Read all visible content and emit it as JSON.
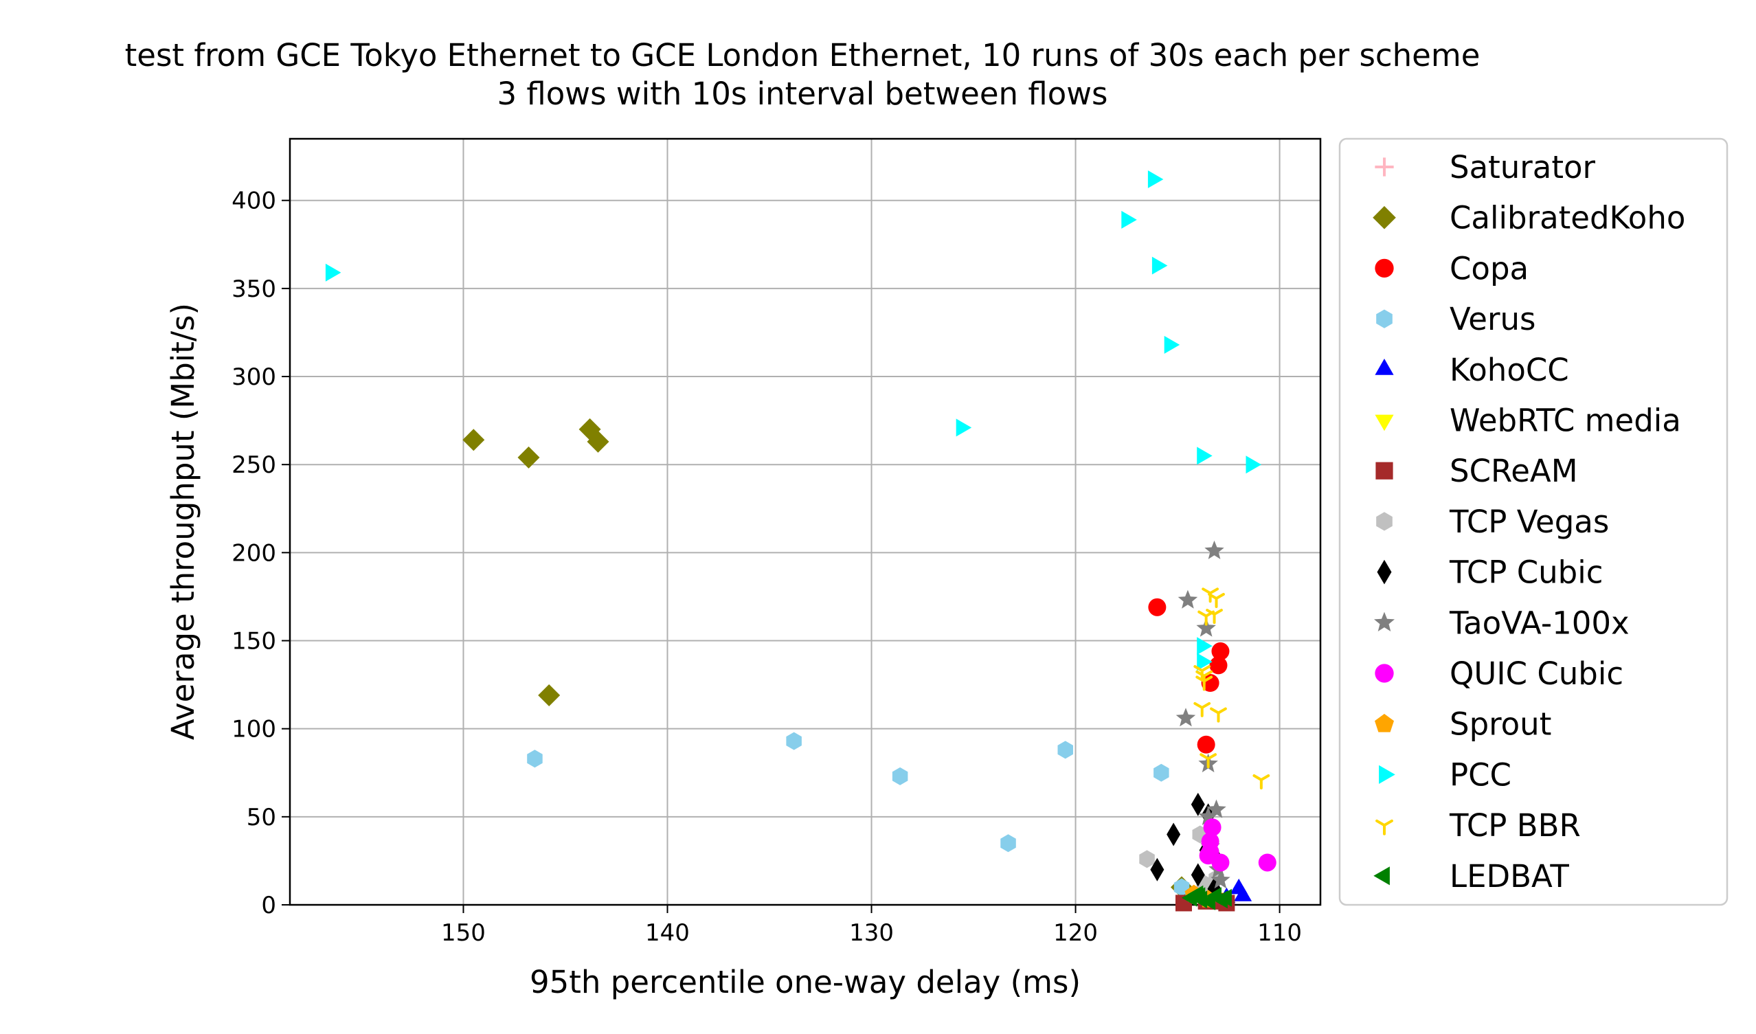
{
  "chart_data": {
    "type": "scatter",
    "title": "test from GCE Tokyo Ethernet to GCE London Ethernet, 10 runs of 30s each per scheme",
    "subtitle": "3 flows with 10s interval between flows",
    "xlabel": "95th percentile one-way delay (ms)",
    "ylabel": "Average throughput (Mbit/s)",
    "xlim": [
      158.5,
      108.0
    ],
    "ylim": [
      0,
      435
    ],
    "x_inverted": true,
    "grid": true,
    "legend_position": "outside-right",
    "xticks": [
      "150",
      "140",
      "130",
      "120",
      "110"
    ],
    "yticks": [
      "0",
      "50",
      "100",
      "150",
      "200",
      "250",
      "300",
      "350",
      "400"
    ],
    "series": [
      {
        "name": "Saturator",
        "color": "#ffb6c1",
        "marker": "plus",
        "points": []
      },
      {
        "name": "CalibratedKoho",
        "color": "#808000",
        "marker": "diamond",
        "points": [
          [
            149.5,
            264
          ],
          [
            146.8,
            254
          ],
          [
            143.8,
            270
          ],
          [
            143.4,
            263
          ],
          [
            145.8,
            119
          ],
          [
            114.8,
            10
          ]
        ]
      },
      {
        "name": "Copa",
        "color": "#ff0000",
        "marker": "circle",
        "points": [
          [
            116.0,
            169
          ],
          [
            112.9,
            144
          ],
          [
            113.0,
            136
          ],
          [
            113.4,
            126
          ],
          [
            113.6,
            91
          ]
        ]
      },
      {
        "name": "Verus",
        "color": "#87ceeb",
        "marker": "hexagon",
        "points": [
          [
            146.5,
            83
          ],
          [
            133.8,
            93
          ],
          [
            128.6,
            73
          ],
          [
            120.5,
            88
          ],
          [
            115.8,
            75
          ],
          [
            123.3,
            35
          ],
          [
            114.8,
            10
          ]
        ]
      },
      {
        "name": "KohoCC",
        "color": "#0000ff",
        "marker": "triangle-up",
        "points": [
          [
            112.0,
            9
          ],
          [
            111.8,
            5
          ],
          [
            113.0,
            3
          ],
          [
            114.0,
            6
          ],
          [
            112.6,
            4
          ]
        ]
      },
      {
        "name": "WebRTC media",
        "color": "#ffff00",
        "marker": "triangle-down",
        "points": [
          [
            113.2,
            4
          ],
          [
            113.6,
            5
          ]
        ]
      },
      {
        "name": "SCReAM",
        "color": "#a52a2a",
        "marker": "square",
        "points": [
          [
            114.7,
            1
          ],
          [
            112.6,
            1
          ],
          [
            113.6,
            2
          ],
          [
            113.0,
            2
          ]
        ]
      },
      {
        "name": "TCP Vegas",
        "color": "#c0c0c0",
        "marker": "hexagon",
        "points": [
          [
            116.5,
            26
          ],
          [
            113.9,
            40
          ],
          [
            113.7,
            12
          ],
          [
            113.1,
            15
          ]
        ]
      },
      {
        "name": "TCP Cubic",
        "color": "#000000",
        "marker": "thin-diamond",
        "points": [
          [
            114.0,
            57
          ],
          [
            113.5,
            51
          ],
          [
            115.2,
            40
          ],
          [
            113.6,
            31
          ],
          [
            114.0,
            17
          ],
          [
            116.0,
            20
          ],
          [
            113.2,
            9
          ],
          [
            113.0,
            24
          ]
        ]
      },
      {
        "name": "TaoVA-100x",
        "color": "#808080",
        "marker": "star",
        "points": [
          [
            113.2,
            201
          ],
          [
            114.5,
            173
          ],
          [
            113.6,
            157
          ],
          [
            114.6,
            106
          ],
          [
            113.5,
            80
          ],
          [
            113.1,
            54
          ],
          [
            113.5,
            50
          ],
          [
            113.4,
            33
          ],
          [
            113.0,
            20
          ],
          [
            112.9,
            14
          ]
        ]
      },
      {
        "name": "QUIC Cubic",
        "color": "#ff00ff",
        "marker": "circle",
        "points": [
          [
            110.6,
            24
          ],
          [
            113.3,
            44
          ],
          [
            113.4,
            36
          ],
          [
            112.9,
            24
          ],
          [
            113.5,
            28
          ],
          [
            113.4,
            30
          ]
        ]
      },
      {
        "name": "Sprout",
        "color": "#ffa500",
        "marker": "pentagon",
        "points": [
          [
            113.5,
            3
          ],
          [
            114.2,
            6
          ]
        ]
      },
      {
        "name": "PCC",
        "color": "#00ffff",
        "marker": "triangle-right",
        "points": [
          [
            156.5,
            359
          ],
          [
            116.2,
            412
          ],
          [
            117.5,
            389
          ],
          [
            116.0,
            363
          ],
          [
            115.4,
            318
          ],
          [
            125.6,
            271
          ],
          [
            113.8,
            255
          ],
          [
            111.4,
            250
          ],
          [
            113.8,
            147
          ],
          [
            113.8,
            138
          ]
        ]
      },
      {
        "name": "TCP BBR",
        "color": "#ffd700",
        "marker": "tri-down",
        "points": [
          [
            113.4,
            177
          ],
          [
            113.1,
            174
          ],
          [
            113.6,
            164
          ],
          [
            113.2,
            165
          ],
          [
            113.8,
            133
          ],
          [
            113.7,
            127
          ],
          [
            113.8,
            112
          ],
          [
            113.0,
            109
          ],
          [
            110.9,
            71
          ],
          [
            113.5,
            83
          ],
          [
            113.7,
            130
          ]
        ]
      },
      {
        "name": "LEDBAT",
        "color": "#008000",
        "marker": "triangle-left",
        "points": [
          [
            114.3,
            4
          ],
          [
            113.8,
            3
          ],
          [
            113.1,
            5
          ],
          [
            112.6,
            4
          ],
          [
            114.0,
            6
          ],
          [
            113.4,
            2
          ],
          [
            113.9,
            5
          ],
          [
            112.8,
            3
          ]
        ]
      }
    ]
  }
}
